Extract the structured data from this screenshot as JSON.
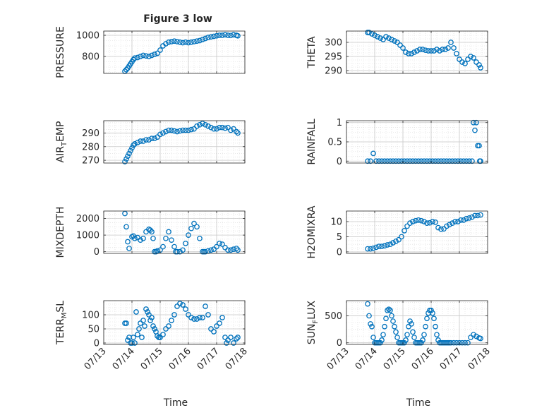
{
  "chart_data": [
    {
      "panel": "PRESSURE",
      "type": "scatter",
      "title": "Figure 3 low",
      "ylabel": "PRESSURE",
      "xlabel": "",
      "xlim": [
        0,
        5
      ],
      "ylim": [
        640,
        1040
      ],
      "xticks": [
        0,
        1,
        2,
        3,
        4,
        5
      ],
      "yticks": [
        800,
        1000
      ],
      "ytick_labels": [
        "800",
        "1000"
      ],
      "grid": true,
      "minor_grid": true,
      "x": [
        0.75,
        0.8,
        0.85,
        0.9,
        0.95,
        1.0,
        1.05,
        1.1,
        1.2,
        1.3,
        1.4,
        1.5,
        1.6,
        1.7,
        1.8,
        1.9,
        2.0,
        2.1,
        2.2,
        2.3,
        2.4,
        2.5,
        2.6,
        2.7,
        2.8,
        2.9,
        3.0,
        3.1,
        3.2,
        3.3,
        3.4,
        3.5,
        3.6,
        3.7,
        3.8,
        3.9,
        4.0,
        4.1,
        4.2,
        4.3,
        4.4,
        4.5,
        4.6,
        4.7,
        4.75
      ],
      "y": [
        660,
        675,
        690,
        710,
        730,
        750,
        770,
        785,
        790,
        800,
        810,
        805,
        800,
        810,
        820,
        830,
        860,
        900,
        920,
        935,
        940,
        945,
        940,
        935,
        930,
        935,
        930,
        935,
        940,
        945,
        950,
        960,
        970,
        980,
        985,
        990,
        995,
        1000,
        1000,
        1005,
        1000,
        998,
        1005,
        1000,
        995
      ]
    },
    {
      "panel": "THETA",
      "type": "scatter",
      "ylabel": "THETA",
      "xlabel": "",
      "xlim": [
        0,
        5
      ],
      "ylim": [
        289,
        304
      ],
      "xticks": [
        0,
        1,
        2,
        3,
        4,
        5
      ],
      "yticks": [
        290,
        295,
        300
      ],
      "ytick_labels": [
        "290",
        "295",
        "300"
      ],
      "grid": true,
      "minor_grid": true,
      "x": [
        0.75,
        0.8,
        0.9,
        1.0,
        1.1,
        1.2,
        1.3,
        1.4,
        1.5,
        1.6,
        1.7,
        1.8,
        1.9,
        2.0,
        2.1,
        2.2,
        2.3,
        2.4,
        2.5,
        2.6,
        2.7,
        2.8,
        2.9,
        3.0,
        3.1,
        3.2,
        3.3,
        3.4,
        3.5,
        3.6,
        3.7,
        3.8,
        3.9,
        4.0,
        4.1,
        4.2,
        4.3,
        4.4,
        4.5,
        4.6,
        4.7,
        4.75
      ],
      "y": [
        303.5,
        303.5,
        303,
        302.5,
        302,
        301.5,
        301,
        302,
        301.5,
        301,
        300.5,
        300,
        299,
        298,
        296.5,
        296,
        296,
        296.5,
        297,
        297.5,
        297.5,
        297.2,
        297,
        297,
        297,
        297.5,
        297,
        297.5,
        297.5,
        298,
        300,
        298,
        296,
        294,
        293,
        292.5,
        294,
        295,
        294.5,
        293,
        292,
        291
      ]
    },
    {
      "panel": "AIR_TEMP",
      "type": "scatter",
      "ylabel": "AIR_TEMP",
      "ylabel_main": "AIR",
      "ylabel_sub": "T",
      "ylabel_rest": "EMP",
      "xlabel": "",
      "xlim": [
        0,
        5
      ],
      "ylim": [
        268,
        299
      ],
      "xticks": [
        0,
        1,
        2,
        3,
        4,
        5
      ],
      "yticks": [
        270,
        280,
        290
      ],
      "ytick_labels": [
        "270",
        "280",
        "290"
      ],
      "grid": true,
      "minor_grid": true,
      "x": [
        0.75,
        0.8,
        0.85,
        0.9,
        0.95,
        1.0,
        1.05,
        1.1,
        1.2,
        1.3,
        1.4,
        1.5,
        1.6,
        1.7,
        1.8,
        1.9,
        2.0,
        2.1,
        2.2,
        2.3,
        2.4,
        2.5,
        2.6,
        2.7,
        2.8,
        2.9,
        3.0,
        3.1,
        3.2,
        3.3,
        3.4,
        3.5,
        3.6,
        3.7,
        3.8,
        3.9,
        4.0,
        4.1,
        4.2,
        4.3,
        4.4,
        4.5,
        4.6,
        4.7,
        4.75
      ],
      "y": [
        269,
        271,
        273,
        275,
        277,
        279,
        281,
        282,
        283,
        284,
        284,
        285,
        285,
        286,
        286,
        287,
        289,
        290,
        291,
        292,
        292,
        291.5,
        291,
        291.5,
        292,
        292,
        292,
        292.5,
        293,
        295,
        296,
        297,
        296,
        295,
        294,
        293,
        293,
        294,
        294,
        293.5,
        294,
        292,
        293,
        291,
        290
      ]
    },
    {
      "panel": "RAINFALL",
      "type": "scatter",
      "ylabel": "RAINFALL",
      "xlabel": "",
      "xlim": [
        0,
        5
      ],
      "ylim": [
        -0.05,
        1.05
      ],
      "xticks": [
        0,
        1,
        2,
        3,
        4,
        5
      ],
      "yticks": [
        0,
        0.5,
        1
      ],
      "ytick_labels": [
        "0",
        "0.5",
        "1"
      ],
      "grid": true,
      "minor_grid": true,
      "x": [
        0.75,
        0.85,
        0.95,
        1.05,
        1.15,
        1.25,
        1.35,
        1.45,
        1.55,
        1.65,
        1.75,
        1.85,
        1.95,
        2.05,
        2.15,
        2.25,
        2.35,
        2.45,
        2.55,
        2.65,
        2.75,
        2.85,
        2.95,
        3.05,
        3.15,
        3.25,
        3.35,
        3.45,
        3.55,
        3.65,
        3.75,
        3.85,
        3.95,
        4.05,
        4.15,
        4.25,
        4.35,
        4.45,
        4.5,
        4.55,
        4.6,
        4.65,
        4.7,
        4.72,
        4.75
      ],
      "y": [
        0,
        0,
        0.2,
        0,
        0,
        0,
        0,
        0,
        0,
        0,
        0,
        0,
        0,
        0,
        0,
        0,
        0,
        0,
        0,
        0,
        0,
        0,
        0,
        0,
        0,
        0,
        0,
        0,
        0,
        0,
        0,
        0,
        0,
        0,
        0,
        0,
        0,
        0,
        1,
        0.8,
        1,
        0.4,
        0.4,
        0,
        0
      ]
    },
    {
      "panel": "MIXDEPTH",
      "type": "scatter",
      "ylabel": "MIXDEPTH",
      "xlabel": "",
      "xlim": [
        0,
        5
      ],
      "ylim": [
        -100,
        2450
      ],
      "xticks": [
        0,
        1,
        2,
        3,
        4,
        5
      ],
      "yticks": [
        0,
        1000,
        2000
      ],
      "ytick_labels": [
        "0",
        "1000",
        "2000"
      ],
      "grid": true,
      "minor_grid": true,
      "x": [
        0.75,
        0.8,
        0.85,
        0.9,
        1.0,
        1.05,
        1.1,
        1.2,
        1.3,
        1.4,
        1.5,
        1.6,
        1.65,
        1.7,
        1.75,
        1.8,
        1.85,
        1.9,
        2.0,
        2.1,
        2.2,
        2.3,
        2.4,
        2.5,
        2.55,
        2.6,
        2.7,
        2.8,
        2.9,
        3.0,
        3.1,
        3.2,
        3.3,
        3.4,
        3.5,
        3.55,
        3.6,
        3.7,
        3.8,
        3.9,
        4.0,
        4.1,
        4.2,
        4.3,
        4.4,
        4.5,
        4.6,
        4.7,
        4.75
      ],
      "y": [
        2300,
        1500,
        600,
        200,
        900,
        950,
        800,
        850,
        700,
        800,
        1200,
        1350,
        1300,
        1200,
        800,
        0,
        0,
        50,
        100,
        300,
        800,
        1200,
        700,
        300,
        0,
        0,
        0,
        100,
        500,
        1000,
        1400,
        1700,
        1500,
        800,
        0,
        0,
        0,
        50,
        100,
        150,
        300,
        500,
        450,
        250,
        100,
        100,
        150,
        200,
        100
      ]
    },
    {
      "panel": "H2OMIXRA",
      "type": "scatter",
      "ylabel": "H2OMIXRA",
      "xlabel": "",
      "xlim": [
        0,
        5
      ],
      "ylim": [
        -0.5,
        13.5
      ],
      "xticks": [
        0,
        1,
        2,
        3,
        4,
        5
      ],
      "yticks": [
        0,
        5,
        10
      ],
      "ytick_labels": [
        "0",
        "5",
        "10"
      ],
      "grid": true,
      "minor_grid": true,
      "x": [
        0.75,
        0.85,
        0.95,
        1.05,
        1.15,
        1.25,
        1.35,
        1.45,
        1.55,
        1.65,
        1.75,
        1.85,
        1.95,
        2.05,
        2.15,
        2.25,
        2.35,
        2.45,
        2.55,
        2.65,
        2.75,
        2.85,
        2.95,
        3.05,
        3.15,
        3.25,
        3.35,
        3.45,
        3.55,
        3.65,
        3.75,
        3.85,
        3.95,
        4.05,
        4.15,
        4.25,
        4.35,
        4.45,
        4.55,
        4.65,
        4.75
      ],
      "y": [
        1,
        1,
        1.2,
        1.5,
        1.8,
        1.8,
        2,
        2.3,
        2.5,
        3,
        3.5,
        4,
        5,
        7,
        8.5,
        9.5,
        10,
        10.3,
        10.5,
        10.3,
        10,
        9.5,
        9.6,
        10,
        9.8,
        8,
        7.5,
        7.6,
        8.5,
        9,
        9.5,
        10,
        10,
        10.5,
        10.5,
        11,
        11.2,
        11.5,
        12,
        12,
        12.2
      ]
    },
    {
      "panel": "TERR_MSL",
      "type": "scatter",
      "ylabel": "TERR_MSL",
      "ylabel_main": "TERR",
      "ylabel_sub": "M",
      "ylabel_rest": "SL",
      "xlabel": "Time",
      "xlim": [
        0,
        5
      ],
      "ylim": [
        -5,
        150
      ],
      "xticks": [
        0,
        1,
        2,
        3,
        4,
        5
      ],
      "xtick_labels": [
        "07/13",
        "07/14",
        "07/15",
        "07/16",
        "07/17",
        "07/18"
      ],
      "yticks": [
        0,
        50,
        100
      ],
      "ytick_labels": [
        "0",
        "50",
        "100"
      ],
      "grid": true,
      "minor_grid": true,
      "x": [
        0.75,
        0.8,
        0.85,
        0.9,
        0.95,
        1.0,
        1.05,
        1.1,
        1.15,
        1.2,
        1.25,
        1.3,
        1.35,
        1.4,
        1.45,
        1.5,
        1.55,
        1.6,
        1.65,
        1.7,
        1.75,
        1.8,
        1.85,
        1.9,
        1.95,
        2.0,
        2.1,
        2.2,
        2.3,
        2.4,
        2.5,
        2.6,
        2.7,
        2.8,
        2.9,
        3.0,
        3.1,
        3.2,
        3.3,
        3.4,
        3.5,
        3.6,
        3.7,
        3.8,
        3.9,
        4.0,
        4.1,
        4.2,
        4.3,
        4.35,
        4.4,
        4.5,
        4.6,
        4.7,
        4.75
      ],
      "y": [
        70,
        70,
        10,
        20,
        0,
        0,
        20,
        0,
        110,
        30,
        50,
        70,
        20,
        80,
        60,
        120,
        110,
        100,
        80,
        90,
        60,
        50,
        40,
        25,
        20,
        20,
        30,
        50,
        60,
        80,
        100,
        130,
        140,
        135,
        120,
        100,
        90,
        85,
        85,
        90,
        90,
        130,
        100,
        50,
        40,
        60,
        70,
        90,
        20,
        0,
        10,
        20,
        0,
        15,
        20
      ]
    },
    {
      "panel": "SUN_FLUX",
      "type": "scatter",
      "ylabel": "SUN_FLUX",
      "ylabel_main": "SUN",
      "ylabel_sub": "F",
      "ylabel_rest": "LUX",
      "xlabel": "Time",
      "xlim": [
        0,
        5
      ],
      "ylim": [
        -30,
        780
      ],
      "xticks": [
        0,
        1,
        2,
        3,
        4,
        5
      ],
      "xtick_labels": [
        "07/13",
        "07/14",
        "07/15",
        "07/16",
        "07/17",
        "07/18"
      ],
      "yticks": [
        0,
        500
      ],
      "ytick_labels": [
        "0",
        "500"
      ],
      "grid": true,
      "minor_grid": true,
      "x": [
        0.75,
        0.8,
        0.85,
        0.9,
        0.95,
        1.0,
        1.05,
        1.1,
        1.15,
        1.2,
        1.25,
        1.3,
        1.35,
        1.4,
        1.45,
        1.5,
        1.55,
        1.6,
        1.65,
        1.7,
        1.75,
        1.8,
        1.85,
        1.9,
        1.95,
        2.0,
        2.05,
        2.1,
        2.15,
        2.2,
        2.25,
        2.3,
        2.35,
        2.4,
        2.45,
        2.5,
        2.55,
        2.6,
        2.65,
        2.7,
        2.75,
        2.8,
        2.85,
        2.9,
        2.95,
        3.0,
        3.05,
        3.1,
        3.15,
        3.2,
        3.25,
        3.3,
        3.35,
        3.4,
        3.45,
        3.5,
        3.55,
        3.6,
        3.65,
        3.7,
        3.8,
        3.9,
        4.0,
        4.1,
        4.2,
        4.3,
        4.4,
        4.5,
        4.6,
        4.7,
        4.75
      ],
      "y": [
        720,
        500,
        350,
        300,
        100,
        0,
        0,
        0,
        0,
        0,
        50,
        150,
        300,
        450,
        600,
        620,
        600,
        500,
        400,
        300,
        200,
        100,
        0,
        0,
        0,
        0,
        0,
        50,
        150,
        300,
        400,
        350,
        200,
        100,
        0,
        0,
        0,
        0,
        0,
        50,
        150,
        300,
        450,
        550,
        600,
        600,
        550,
        450,
        300,
        150,
        50,
        0,
        0,
        0,
        0,
        0,
        0,
        0,
        0,
        0,
        0,
        0,
        0,
        0,
        0,
        0,
        100,
        150,
        120,
        90,
        80
      ]
    }
  ]
}
